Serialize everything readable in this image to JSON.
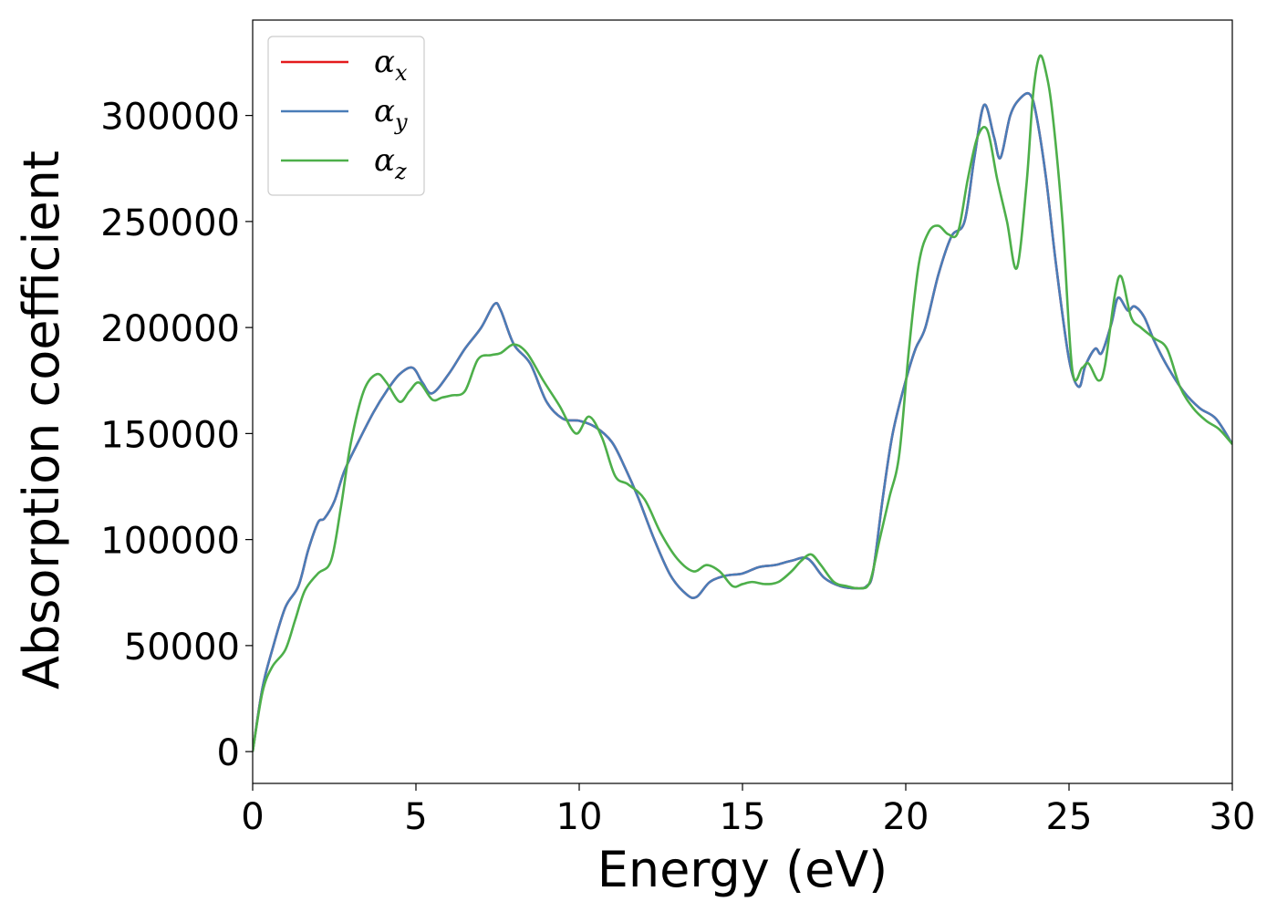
{
  "chart_data": {
    "type": "line",
    "title": "",
    "xlabel": "Energy (eV)",
    "ylabel": "Absorption coefficient",
    "xlim": [
      0,
      30
    ],
    "ylim": [
      -15000,
      345000
    ],
    "xticks": [
      0,
      5,
      10,
      15,
      20,
      25,
      30
    ],
    "yticks": [
      0,
      50000,
      100000,
      150000,
      200000,
      250000,
      300000
    ],
    "grid": false,
    "legend": "top-left",
    "series": [
      {
        "name": "x",
        "symbol": "α",
        "color": "#e41a1c",
        "x": [
          0,
          0.3,
          0.6,
          1.0,
          1.4,
          1.7,
          2.0,
          2.2,
          2.5,
          2.8,
          3.2,
          3.7,
          4.1,
          4.5,
          4.9,
          5.2,
          5.5,
          6.0,
          6.5,
          7.0,
          7.4,
          7.6,
          8.0,
          8.5,
          9.0,
          9.5,
          10.0,
          10.5,
          11.0,
          11.4,
          11.8,
          12.3,
          12.8,
          13.3,
          13.6,
          14.0,
          14.5,
          15.0,
          15.5,
          16.0,
          16.5,
          17.0,
          17.5,
          18.0,
          18.5,
          18.8,
          19.0,
          19.3,
          19.6,
          20.0,
          20.3,
          20.6,
          21.0,
          21.4,
          21.8,
          22.1,
          22.4,
          22.7,
          22.9,
          23.2,
          23.5,
          23.8,
          24.0,
          24.3,
          24.6,
          25.0,
          25.3,
          25.5,
          25.8,
          26.0,
          26.3,
          26.5,
          26.8,
          27.0,
          27.3,
          27.6,
          28.0,
          28.5,
          29.0,
          29.5,
          30.0
        ],
        "y": [
          0,
          30000,
          48000,
          68000,
          78000,
          95000,
          108000,
          110000,
          118000,
          132000,
          145000,
          160000,
          170000,
          178000,
          181000,
          174000,
          169000,
          178000,
          190000,
          200000,
          211000,
          208000,
          192000,
          183000,
          165000,
          157000,
          156000,
          153000,
          146000,
          134000,
          120000,
          100000,
          83000,
          74000,
          73000,
          80000,
          83000,
          84000,
          87000,
          88000,
          90000,
          91000,
          82000,
          78000,
          77000,
          78000,
          85000,
          120000,
          150000,
          175000,
          190000,
          200000,
          225000,
          243000,
          250000,
          280000,
          305000,
          290000,
          280000,
          300000,
          308000,
          310000,
          300000,
          270000,
          230000,
          185000,
          172000,
          182000,
          190000,
          188000,
          202000,
          214000,
          208000,
          210000,
          205000,
          194000,
          182000,
          170000,
          162000,
          157000,
          145000
        ]
      },
      {
        "name": "y",
        "symbol": "α",
        "color": "#4a7db8",
        "x": [
          0,
          0.3,
          0.6,
          1.0,
          1.4,
          1.7,
          2.0,
          2.2,
          2.5,
          2.8,
          3.2,
          3.7,
          4.1,
          4.5,
          4.9,
          5.2,
          5.5,
          6.0,
          6.5,
          7.0,
          7.4,
          7.6,
          8.0,
          8.5,
          9.0,
          9.5,
          10.0,
          10.5,
          11.0,
          11.4,
          11.8,
          12.3,
          12.8,
          13.3,
          13.6,
          14.0,
          14.5,
          15.0,
          15.5,
          16.0,
          16.5,
          17.0,
          17.5,
          18.0,
          18.5,
          18.8,
          19.0,
          19.3,
          19.6,
          20.0,
          20.3,
          20.6,
          21.0,
          21.4,
          21.8,
          22.1,
          22.4,
          22.7,
          22.9,
          23.2,
          23.5,
          23.8,
          24.0,
          24.3,
          24.6,
          25.0,
          25.3,
          25.5,
          25.8,
          26.0,
          26.3,
          26.5,
          26.8,
          27.0,
          27.3,
          27.6,
          28.0,
          28.5,
          29.0,
          29.5,
          30.0
        ],
        "y": [
          0,
          30000,
          48000,
          68000,
          78000,
          95000,
          108000,
          110000,
          118000,
          132000,
          145000,
          160000,
          170000,
          178000,
          181000,
          174000,
          169000,
          178000,
          190000,
          200000,
          211000,
          208000,
          192000,
          183000,
          165000,
          157000,
          156000,
          153000,
          146000,
          134000,
          120000,
          100000,
          83000,
          74000,
          73000,
          80000,
          83000,
          84000,
          87000,
          88000,
          90000,
          91000,
          82000,
          78000,
          77000,
          78000,
          85000,
          120000,
          150000,
          175000,
          190000,
          200000,
          225000,
          243000,
          250000,
          280000,
          305000,
          290000,
          280000,
          300000,
          308000,
          310000,
          300000,
          270000,
          230000,
          185000,
          172000,
          182000,
          190000,
          188000,
          202000,
          214000,
          208000,
          210000,
          205000,
          194000,
          182000,
          170000,
          162000,
          157000,
          145000
        ]
      },
      {
        "name": "z",
        "symbol": "α",
        "color": "#4daf4a",
        "x": [
          0,
          0.3,
          0.6,
          1.0,
          1.3,
          1.6,
          2.0,
          2.4,
          2.7,
          3.0,
          3.4,
          3.8,
          4.1,
          4.5,
          4.8,
          5.1,
          5.5,
          5.8,
          6.1,
          6.5,
          6.9,
          7.3,
          7.6,
          8.0,
          8.4,
          8.9,
          9.4,
          9.9,
          10.3,
          10.7,
          11.1,
          11.5,
          12.0,
          12.5,
          13.0,
          13.5,
          13.9,
          14.3,
          14.7,
          15.0,
          15.3,
          15.7,
          16.1,
          16.5,
          16.8,
          17.1,
          17.4,
          17.8,
          18.2,
          18.6,
          18.9,
          19.2,
          19.5,
          19.8,
          20.1,
          20.4,
          20.7,
          21.0,
          21.3,
          21.6,
          21.9,
          22.2,
          22.5,
          22.8,
          23.1,
          23.4,
          23.7,
          23.9,
          24.1,
          24.3,
          24.5,
          24.8,
          25.1,
          25.4,
          25.6,
          25.9,
          26.1,
          26.4,
          26.6,
          26.9,
          27.2,
          27.6,
          28.0,
          28.4,
          28.8,
          29.2,
          29.6,
          30.0
        ],
        "y": [
          0,
          28000,
          40000,
          48000,
          62000,
          76000,
          84000,
          90000,
          115000,
          145000,
          170000,
          178000,
          174000,
          165000,
          170000,
          174000,
          166000,
          167000,
          168000,
          170000,
          185000,
          187000,
          188000,
          192000,
          188000,
          175000,
          163000,
          150000,
          158000,
          148000,
          130000,
          126000,
          119000,
          103000,
          91000,
          85000,
          88000,
          85000,
          78000,
          79000,
          80000,
          79000,
          80000,
          85000,
          90000,
          93000,
          88000,
          80000,
          78000,
          77000,
          80000,
          100000,
          120000,
          140000,
          190000,
          230000,
          245000,
          248000,
          244000,
          245000,
          270000,
          290000,
          293000,
          270000,
          250000,
          228000,
          268000,
          310000,
          328000,
          320000,
          300000,
          250000,
          180000,
          181000,
          183000,
          175000,
          182000,
          215000,
          224000,
          205000,
          200000,
          195000,
          190000,
          172000,
          162000,
          156000,
          152000,
          145000
        ]
      }
    ]
  }
}
